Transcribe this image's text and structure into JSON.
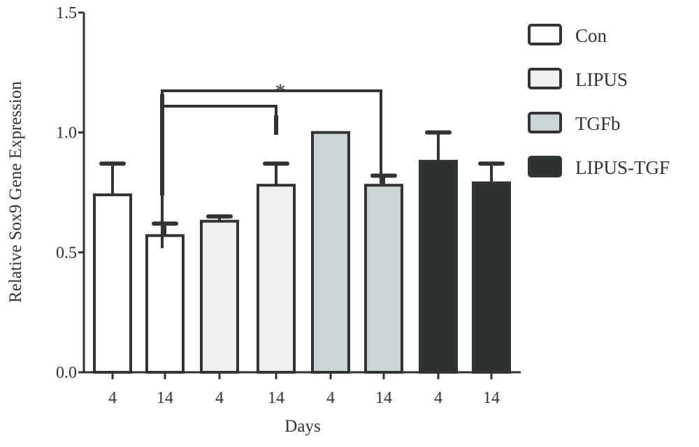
{
  "chart_data": {
    "type": "bar",
    "title": "",
    "xlabel": "Days",
    "ylabel": "Relative Sox9 Gene Expression",
    "ylim": [
      0,
      1.5
    ],
    "yticks": [
      "0.0",
      "0.5",
      "1.0",
      "1.5"
    ],
    "categories": [
      "4",
      "14",
      "4",
      "14",
      "4",
      "14",
      "4",
      "14"
    ],
    "bars": [
      {
        "group": "Con",
        "day": "4",
        "value": 0.74,
        "error": 0.13
      },
      {
        "group": "Con",
        "day": "14",
        "value": 0.57,
        "error": 0.05
      },
      {
        "group": "LIPUS",
        "day": "4",
        "value": 0.63,
        "error": 0.02
      },
      {
        "group": "LIPUS",
        "day": "14",
        "value": 0.78,
        "error": 0.09
      },
      {
        "group": "TGFb",
        "day": "4",
        "value": 1.0,
        "error": 0.0
      },
      {
        "group": "TGFb",
        "day": "14",
        "value": 0.78,
        "error": 0.04
      },
      {
        "group": "LIPUS-TGF",
        "day": "4",
        "value": 0.88,
        "error": 0.12
      },
      {
        "group": "LIPUS-TGF",
        "day": "14",
        "value": 0.79,
        "error": 0.08
      }
    ],
    "legend": {
      "placement": "right",
      "entries": [
        {
          "label": "Con",
          "color": "#ffffff"
        },
        {
          "label": "LIPUS",
          "color": "#eef0ef"
        },
        {
          "label": "TGFb",
          "color": "#cdd4d6"
        },
        {
          "label": "LIPUS-TGF",
          "color": "#2c3230"
        }
      ]
    },
    "significance": [
      {
        "from_bar": 1,
        "to_bar": 3,
        "label": ""
      },
      {
        "from_bar": 1,
        "to_bar": 5,
        "label": "*"
      }
    ],
    "grid": false,
    "stroke_color": "#333333"
  }
}
